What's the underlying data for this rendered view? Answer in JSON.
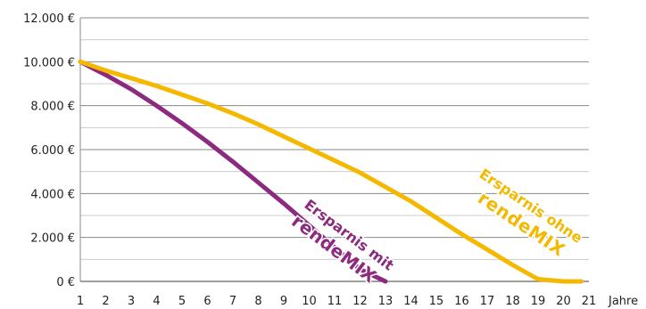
{
  "chart_data": {
    "type": "line",
    "xlabel": "Jahre",
    "ylabel": "",
    "x_ticks": [
      "1",
      "2",
      "3",
      "4",
      "5",
      "6",
      "7",
      "8",
      "9",
      "10",
      "11",
      "12",
      "13",
      "14",
      "15",
      "16",
      "17",
      "18",
      "19",
      "20",
      "21"
    ],
    "y_ticks": [
      "0 €",
      "2.000 €",
      "4.000 €",
      "6.000 €",
      "8.000 €",
      "10.000 €",
      "12.000 €"
    ],
    "xlim": [
      1,
      21
    ],
    "ylim": [
      0,
      12000
    ],
    "grid": "horizontal",
    "series": [
      {
        "name": "Ersparnis mit rendeMIX",
        "color": "#8b2a7e",
        "x": [
          1,
          2,
          3,
          4,
          5,
          6,
          7,
          8,
          9,
          10,
          11,
          12,
          13
        ],
        "y": [
          10000,
          9400,
          8750,
          8000,
          7200,
          6350,
          5450,
          4500,
          3550,
          2550,
          1550,
          550,
          0
        ]
      },
      {
        "name": "Ersparnis ohne rendeMIX",
        "color": "#f5b800",
        "x": [
          1,
          2,
          3,
          4,
          5,
          6,
          7,
          8,
          9,
          10,
          11,
          12,
          13,
          14,
          15,
          16,
          17,
          18,
          19,
          20,
          20.7
        ],
        "y": [
          10000,
          9600,
          9250,
          8900,
          8500,
          8100,
          7650,
          7150,
          6600,
          6050,
          5500,
          4950,
          4300,
          3650,
          2900,
          2150,
          1450,
          750,
          100,
          0,
          0
        ]
      }
    ]
  },
  "annotations": {
    "mit_line1": "Ersparnis mit",
    "mit_line2": "rendeMIX",
    "ohne_line1": "Ersparnis ohne",
    "ohne_line2": "rendeMIX"
  }
}
